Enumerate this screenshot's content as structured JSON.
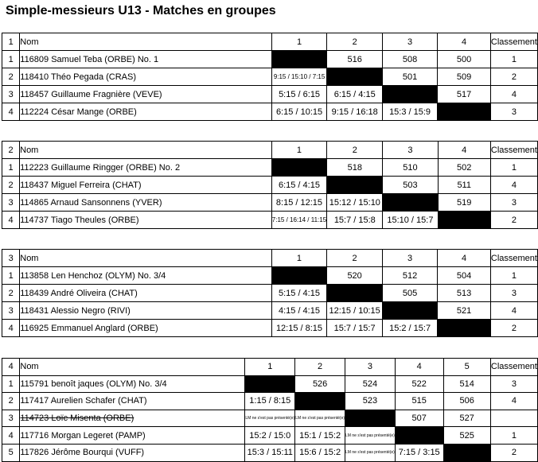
{
  "title": "Simple-messieurs U13 - Matches en groupes",
  "labels": {
    "nom": "Nom",
    "classement": "Classement",
    "walkover": "LM ne s'est pas présenté(e)"
  },
  "groups": [
    {
      "no": "1",
      "columns": [
        "1",
        "2",
        "3",
        "4"
      ],
      "rows": [
        {
          "pos": "1",
          "name": "116809  Samuel Teba (ORBE) No. 1",
          "struck": false,
          "classement": "1",
          "cells": [
            {
              "type": "diag"
            },
            {
              "type": "score",
              "v": "516"
            },
            {
              "type": "score",
              "v": "508"
            },
            {
              "type": "score",
              "v": "500"
            }
          ]
        },
        {
          "pos": "2",
          "name": "118410  Théo Pegada (CRAS)",
          "struck": false,
          "classement": "2",
          "cells": [
            {
              "type": "score-small",
              "v": "9:15 / 15:10 / 7:15"
            },
            {
              "type": "diag"
            },
            {
              "type": "score",
              "v": "501"
            },
            {
              "type": "score",
              "v": "509"
            }
          ]
        },
        {
          "pos": "3",
          "name": "118457  Guillaume Fragnière (VEVE)",
          "struck": false,
          "classement": "4",
          "cells": [
            {
              "type": "score",
              "v": "5:15 / 6:15"
            },
            {
              "type": "score",
              "v": "6:15 / 4:15"
            },
            {
              "type": "diag"
            },
            {
              "type": "score",
              "v": "517"
            }
          ]
        },
        {
          "pos": "4",
          "name": "112224  César Mange (ORBE)",
          "struck": false,
          "classement": "3",
          "cells": [
            {
              "type": "score",
              "v": "6:15 / 10:15"
            },
            {
              "type": "score",
              "v": "9:15 / 16:18"
            },
            {
              "type": "score",
              "v": "15:3 / 15:9"
            },
            {
              "type": "diag"
            }
          ]
        }
      ]
    },
    {
      "no": "2",
      "columns": [
        "1",
        "2",
        "3",
        "4"
      ],
      "rows": [
        {
          "pos": "1",
          "name": "112223  Guillaume Ringger (ORBE) No. 2",
          "struck": false,
          "classement": "1",
          "cells": [
            {
              "type": "diag"
            },
            {
              "type": "score",
              "v": "518"
            },
            {
              "type": "score",
              "v": "510"
            },
            {
              "type": "score",
              "v": "502"
            }
          ]
        },
        {
          "pos": "2",
          "name": "118437  Miguel Ferreira (CHAT)",
          "struck": false,
          "classement": "4",
          "cells": [
            {
              "type": "score",
              "v": "6:15 / 4:15"
            },
            {
              "type": "diag"
            },
            {
              "type": "score",
              "v": "503"
            },
            {
              "type": "score",
              "v": "511"
            }
          ]
        },
        {
          "pos": "3",
          "name": "114865  Arnaud Sansonnens (YVER)",
          "struck": false,
          "classement": "3",
          "cells": [
            {
              "type": "score",
              "v": "8:15 / 12:15"
            },
            {
              "type": "score",
              "v": "15:12 / 15:10"
            },
            {
              "type": "diag"
            },
            {
              "type": "score",
              "v": "519"
            }
          ]
        },
        {
          "pos": "4",
          "name": "114737  Tiago Theules (ORBE)",
          "struck": false,
          "classement": "2",
          "cells": [
            {
              "type": "score-small",
              "v": "7:15 / 16:14 / 11:15"
            },
            {
              "type": "score",
              "v": "15:7 / 15:8"
            },
            {
              "type": "score",
              "v": "15:10 / 15:7"
            },
            {
              "type": "diag"
            }
          ]
        }
      ]
    },
    {
      "no": "3",
      "columns": [
        "1",
        "2",
        "3",
        "4"
      ],
      "rows": [
        {
          "pos": "1",
          "name": "113858  Len Henchoz (OLYM) No. 3/4",
          "struck": false,
          "classement": "1",
          "cells": [
            {
              "type": "diag"
            },
            {
              "type": "score",
              "v": "520"
            },
            {
              "type": "score",
              "v": "512"
            },
            {
              "type": "score",
              "v": "504"
            }
          ]
        },
        {
          "pos": "2",
          "name": "118439  André Oliveira (CHAT)",
          "struck": false,
          "classement": "3",
          "cells": [
            {
              "type": "score",
              "v": "5:15 / 4:15"
            },
            {
              "type": "diag"
            },
            {
              "type": "score",
              "v": "505"
            },
            {
              "type": "score",
              "v": "513"
            }
          ]
        },
        {
          "pos": "3",
          "name": "118431  Alessio Negro (RIVI)",
          "struck": false,
          "classement": "4",
          "cells": [
            {
              "type": "score",
              "v": "4:15 / 4:15"
            },
            {
              "type": "score",
              "v": "12:15 / 10:15"
            },
            {
              "type": "diag"
            },
            {
              "type": "score",
              "v": "521"
            }
          ]
        },
        {
          "pos": "4",
          "name": "116925  Emmanuel Anglard (ORBE)",
          "struck": false,
          "classement": "2",
          "cells": [
            {
              "type": "score",
              "v": "12:15 / 8:15"
            },
            {
              "type": "score",
              "v": "15:7 / 15:7"
            },
            {
              "type": "score",
              "v": "15:2 / 15:7"
            },
            {
              "type": "diag"
            }
          ]
        }
      ]
    },
    {
      "no": "4",
      "columns": [
        "1",
        "2",
        "3",
        "4",
        "5"
      ],
      "rows": [
        {
          "pos": "1",
          "name": "115791  benoît jaques (OLYM) No. 3/4",
          "struck": false,
          "classement": "3",
          "cells": [
            {
              "type": "diag"
            },
            {
              "type": "score",
              "v": "526"
            },
            {
              "type": "score",
              "v": "524"
            },
            {
              "type": "score",
              "v": "522"
            },
            {
              "type": "score",
              "v": "514"
            }
          ]
        },
        {
          "pos": "2",
          "name": "117417  Aurelien Schafer (CHAT)",
          "struck": false,
          "classement": "4",
          "cells": [
            {
              "type": "score",
              "v": "1:15 / 8:15"
            },
            {
              "type": "diag"
            },
            {
              "type": "score",
              "v": "523"
            },
            {
              "type": "score",
              "v": "515"
            },
            {
              "type": "score",
              "v": "506"
            }
          ]
        },
        {
          "pos": "3",
          "name": "114723  Loïc Misenta (ORBE) ",
          "struck": true,
          "classement": "",
          "cells": [
            {
              "type": "wo"
            },
            {
              "type": "wo"
            },
            {
              "type": "diag"
            },
            {
              "type": "score",
              "v": "507"
            },
            {
              "type": "score",
              "v": "527"
            }
          ]
        },
        {
          "pos": "4",
          "name": "117716  Morgan Legeret (PAMP)",
          "struck": false,
          "classement": "1",
          "cells": [
            {
              "type": "score",
              "v": "15:2 / 15:0"
            },
            {
              "type": "score",
              "v": "15:1 / 15:2"
            },
            {
              "type": "wo"
            },
            {
              "type": "diag"
            },
            {
              "type": "score",
              "v": "525"
            }
          ]
        },
        {
          "pos": "5",
          "name": "117826  Jérôme Bourqui (VUFF)",
          "struck": false,
          "classement": "2",
          "cells": [
            {
              "type": "score",
              "v": "15:3 / 15:11"
            },
            {
              "type": "score",
              "v": "15:6 / 15:2"
            },
            {
              "type": "wo"
            },
            {
              "type": "score",
              "v": "7:15 / 3:15"
            },
            {
              "type": "diag"
            }
          ]
        }
      ]
    }
  ]
}
